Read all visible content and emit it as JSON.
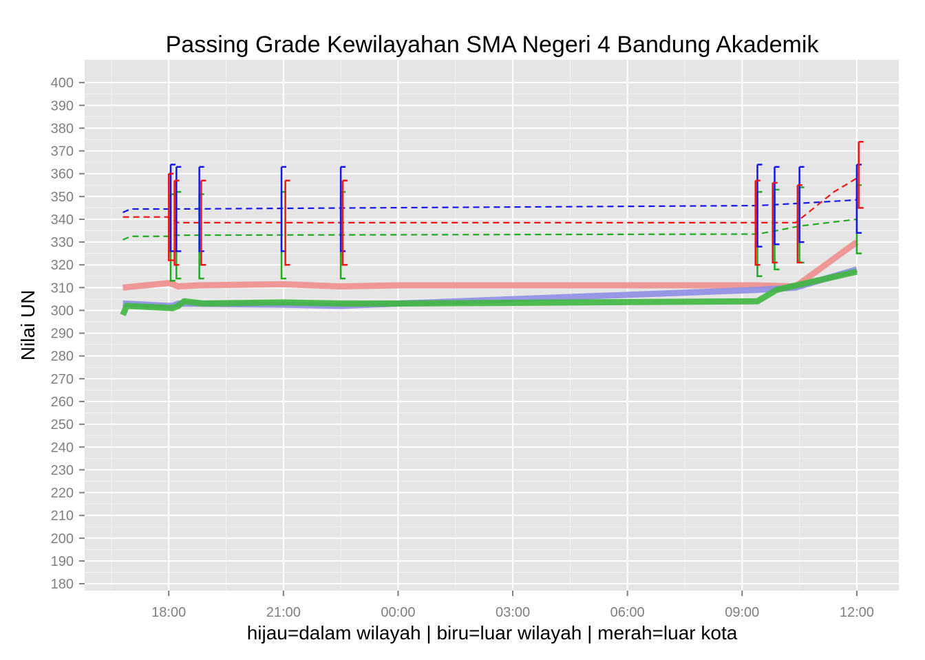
{
  "chart_data": {
    "type": "line",
    "title": "Passing Grade Kewilayahan SMA Negeri 4 Bandung Akademik",
    "xlabel": "hijau=dalam wilayah | biru=luar wilayah | merah=luar kota",
    "ylabel": "Nilai UN",
    "x_unit": "hours relative to 00:00 on the second day",
    "x_ticks": [
      {
        "value": -6,
        "label": "18:00"
      },
      {
        "value": -3,
        "label": "21:00"
      },
      {
        "value": 0,
        "label": "00:00"
      },
      {
        "value": 3,
        "label": "03:00"
      },
      {
        "value": 6,
        "label": "06:00"
      },
      {
        "value": 9,
        "label": "09:00"
      },
      {
        "value": 12,
        "label": "12:00"
      }
    ],
    "xlim": [
      -8.2,
      13.1
    ],
    "ylim": [
      177,
      410
    ],
    "y_ticks": [
      180,
      190,
      200,
      210,
      220,
      230,
      240,
      250,
      260,
      270,
      280,
      290,
      300,
      310,
      320,
      330,
      340,
      350,
      360,
      370,
      380,
      390,
      400
    ],
    "grid": true,
    "legend": "none",
    "colors": {
      "panel_bg": "#e5e5e5",
      "grid": "#ffffff",
      "green": "#1faa1f",
      "blue": "#1515ee",
      "red": "#ee1515",
      "green_band": "#3fb63f",
      "blue_band": "#8e8ee6",
      "red_band": "#ef8e8e"
    },
    "series": [
      {
        "color": "green",
        "min_line": {
          "x": [
            -7.2,
            -7.1,
            -5.9,
            -5.75,
            -5.6,
            -5.1,
            -3,
            -1.5,
            0,
            9.4,
            9.9,
            12
          ],
          "y": [
            298,
            302,
            301,
            302,
            304,
            303,
            303.5,
            303,
            303,
            304,
            309,
            317
          ]
        },
        "mean_line": {
          "x": [
            -7.2,
            -7,
            -6,
            -5.9,
            9.4,
            9.9,
            10.5,
            12
          ],
          "y": [
            331,
            332.5,
            332.5,
            333,
            333.5,
            335,
            337,
            340
          ]
        },
        "errorbars": [
          {
            "x": -5.95,
            "low": 313,
            "high": 351
          },
          {
            "x": -5.8,
            "low": 314,
            "high": 352
          },
          {
            "x": -5.2,
            "low": 314,
            "high": 351
          },
          {
            "x": -3.05,
            "low": 314,
            "high": 352
          },
          {
            "x": -1.5,
            "low": 314,
            "high": 352
          },
          {
            "x": 9.4,
            "low": 315,
            "high": 352
          },
          {
            "x": 9.85,
            "low": 318,
            "high": 353
          },
          {
            "x": 10.5,
            "low": 321,
            "high": 354
          },
          {
            "x": 12,
            "low": 325,
            "high": 355
          }
        ]
      },
      {
        "color": "blue",
        "min_line": {
          "x": [
            -7.2,
            -6,
            -5.9,
            -5.75,
            -3,
            -1.5,
            0,
            9.4,
            10.4,
            12
          ],
          "y": [
            303,
            302,
            302,
            303,
            302.5,
            302,
            303,
            309,
            310,
            318
          ]
        },
        "mean_line": {
          "x": [
            -7.2,
            -7,
            -6,
            9.4,
            10.5,
            12
          ],
          "y": [
            343,
            344.5,
            344.5,
            346,
            347,
            348.5
          ]
        },
        "errorbars": [
          {
            "x": -5.95,
            "low": 326,
            "high": 364
          },
          {
            "x": -5.8,
            "low": 326,
            "high": 363
          },
          {
            "x": -5.2,
            "low": 326,
            "high": 363
          },
          {
            "x": -3.05,
            "low": 326,
            "high": 363
          },
          {
            "x": -1.5,
            "low": 326,
            "high": 363
          },
          {
            "x": 9.4,
            "low": 328,
            "high": 364
          },
          {
            "x": 9.85,
            "low": 329,
            "high": 363
          },
          {
            "x": 10.5,
            "low": 330,
            "high": 363
          },
          {
            "x": 12,
            "low": 334,
            "high": 364
          }
        ]
      },
      {
        "color": "red",
        "min_line": {
          "x": [
            -7.2,
            -6,
            -5.9,
            -5.75,
            -5.2,
            -3,
            -1.5,
            0,
            9.4,
            10.4,
            12
          ],
          "y": [
            310,
            312,
            311.5,
            310.5,
            311,
            311.5,
            310.5,
            311,
            311,
            310.5,
            330
          ]
        },
        "mean_line": {
          "x": [
            -7.2,
            -6,
            -5.75,
            9.4,
            10.4,
            11.4,
            12
          ],
          "y": [
            341,
            341,
            338.5,
            338.5,
            338.5,
            352,
            358
          ]
        },
        "errorbars": [
          {
            "x": -6.0,
            "low": 322,
            "high": 360
          },
          {
            "x": -5.85,
            "low": 320,
            "high": 357
          },
          {
            "x": -5.15,
            "low": 320,
            "high": 357
          },
          {
            "x": -2.95,
            "low": 320,
            "high": 357
          },
          {
            "x": -1.45,
            "low": 320,
            "high": 357
          },
          {
            "x": 9.35,
            "low": 320,
            "high": 357
          },
          {
            "x": 9.8,
            "low": 321,
            "high": 356
          },
          {
            "x": 10.45,
            "low": 321,
            "high": 355
          },
          {
            "x": 12.05,
            "low": 345,
            "high": 374
          }
        ]
      }
    ]
  }
}
